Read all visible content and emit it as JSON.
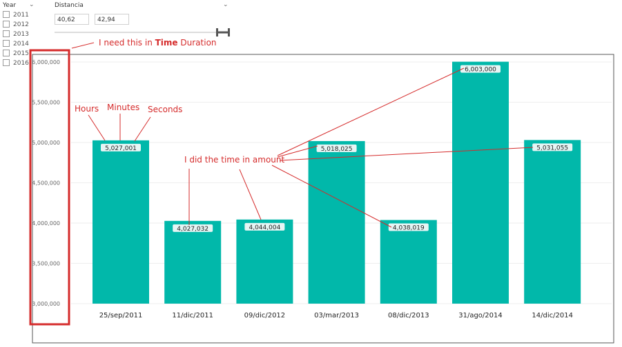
{
  "year_slicer": {
    "title": "Year",
    "items": [
      "2011",
      "2012",
      "2013",
      "2014",
      "2015",
      "2016"
    ]
  },
  "distance_slicer": {
    "title": "Distancia",
    "min_value": "40,62",
    "max_value": "42,94"
  },
  "annotations": {
    "top_note_prefix": "I need this in ",
    "top_note_bold": "Time",
    "top_note_suffix": " Duration",
    "hours": "Hours",
    "minutes": "Minutes",
    "seconds": "Seconds",
    "amount_note": "I did the time in amount"
  },
  "colors": {
    "bar": "#01b8aa",
    "annotation": "#d52b2b",
    "gridline": "#eeeeee"
  },
  "chart_data": {
    "type": "bar",
    "categories": [
      "25/sep/2011",
      "11/dic/2011",
      "09/dic/2012",
      "03/mar/2013",
      "08/dic/2013",
      "31/ago/2014",
      "14/dic/2014"
    ],
    "values": [
      5027001,
      4027032,
      4044004,
      5018025,
      4038019,
      6003000,
      5031055
    ],
    "data_labels": [
      "5,027,001",
      "4,027,032",
      "4,044,004",
      "5,018,025",
      "4,038,019",
      "6,003,000",
      "5,031,055"
    ],
    "y_ticks": [
      3000000,
      3500000,
      4000000,
      4500000,
      5000000,
      5500000,
      6000000
    ],
    "y_tick_labels": [
      "3,000,000",
      "3,500,000",
      "4,000,000",
      "4,500,000",
      "5,000,000",
      "5,500,000",
      "6,000,000"
    ],
    "ylim": [
      3000000,
      6000000
    ],
    "grid": true
  }
}
